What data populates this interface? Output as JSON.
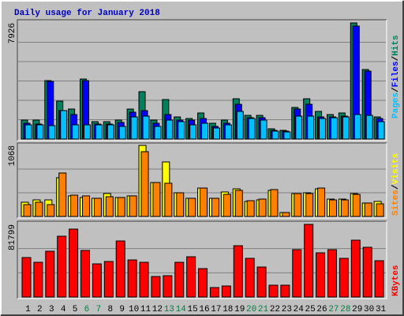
{
  "chart_data": [
    {
      "type": "bar",
      "title": "Daily usage for January 2018",
      "ylim": [
        0,
        7926
      ],
      "yticks": [
        7926
      ],
      "grid": true,
      "legend_separator": "/",
      "series": [
        {
          "name": "Hits",
          "color": "#00805c",
          "values": [
            1294,
            1294,
            3989,
            2588,
            2048,
            4096,
            1186,
            1186,
            1294,
            2048,
            3234,
            1294,
            2695,
            1509,
            1401,
            1779,
            1078,
            1294,
            2749,
            1617,
            1617,
            701,
            593,
            2156,
            2749,
            1887,
            1671,
            1779,
            7926,
            4744,
            1509
          ]
        },
        {
          "name": "Files",
          "color": "#0000ff",
          "values": [
            1078,
            1024,
            3935,
            1940,
            1671,
            3989,
            1024,
            1024,
            1132,
            1833,
            1940,
            1078,
            1671,
            1294,
            1294,
            1401,
            862,
            1078,
            2372,
            1455,
            1455,
            593,
            539,
            2048,
            2372,
            1509,
            1509,
            1563,
            7710,
            4636,
            1401
          ]
        },
        {
          "name": "Pages",
          "color": "#00c0ff",
          "values": [
            970,
            970,
            916,
            1940,
            970,
            970,
            970,
            970,
            862,
            1509,
            1563,
            862,
            1294,
            1186,
            970,
            1078,
            755,
            970,
            1887,
            1401,
            1294,
            539,
            485,
            1563,
            1563,
            1401,
            1455,
            1509,
            1671,
            1617,
            1186
          ]
        }
      ]
    },
    {
      "type": "bar",
      "ylim": [
        0,
        1068
      ],
      "yticks": [
        1068
      ],
      "grid": true,
      "legend_separator": "/",
      "series": [
        {
          "name": "Visits",
          "color": "#ffff00",
          "values": [
            214,
            249,
            249,
            582,
            309,
            285,
            273,
            344,
            285,
            309,
            1068,
            510,
            819,
            356,
            273,
            427,
            273,
            368,
            415,
            226,
            249,
            392,
            59,
            344,
            356,
            415,
            261,
            261,
            344,
            202,
            226
          ]
        },
        {
          "name": "Sites",
          "color": "#ff8000",
          "values": [
            178,
            214,
            178,
            653,
            320,
            309,
            273,
            297,
            285,
            309,
            973,
            510,
            499,
            356,
            273,
            427,
            273,
            332,
            392,
            237,
            261,
            404,
            59,
            344,
            344,
            427,
            249,
            249,
            332,
            202,
            190
          ]
        }
      ]
    },
    {
      "type": "bar",
      "ylim": [
        0,
        81799
      ],
      "yticks": [
        81799
      ],
      "grid": true,
      "categories": [
        "1",
        "2",
        "3",
        "4",
        "5",
        "6",
        "7",
        "8",
        "9",
        "10",
        "11",
        "12",
        "13",
        "14",
        "15",
        "16",
        "17",
        "18",
        "19",
        "20",
        "21",
        "22",
        "23",
        "24",
        "25",
        "26",
        "27",
        "28",
        "29",
        "30",
        "31"
      ],
      "category_colors": [
        "#000000",
        "#000000",
        "#000000",
        "#000000",
        "#000000",
        "#008040",
        "#008040",
        "#000000",
        "#000000",
        "#000000",
        "#000000",
        "#000000",
        "#008040",
        "#008040",
        "#000000",
        "#000000",
        "#000000",
        "#000000",
        "#000000",
        "#008040",
        "#008040",
        "#000000",
        "#000000",
        "#000000",
        "#000000",
        "#000000",
        "#008040",
        "#008040",
        "#000000",
        "#000000",
        "#000000"
      ],
      "series": [
        {
          "name": "KBytes",
          "color": "#ff0000",
          "values": [
            44450,
            39116,
            51562,
            68453,
            76454,
            52451,
            37338,
            40005,
            63119,
            41783,
            39116,
            23114,
            24003,
            39116,
            45339,
            32004,
            10668,
            12446,
            57785,
            43561,
            33782,
            13335,
            13335,
            53340,
            81799,
            49784,
            53340,
            43561,
            64008,
            56007,
            40894
          ]
        }
      ]
    }
  ]
}
